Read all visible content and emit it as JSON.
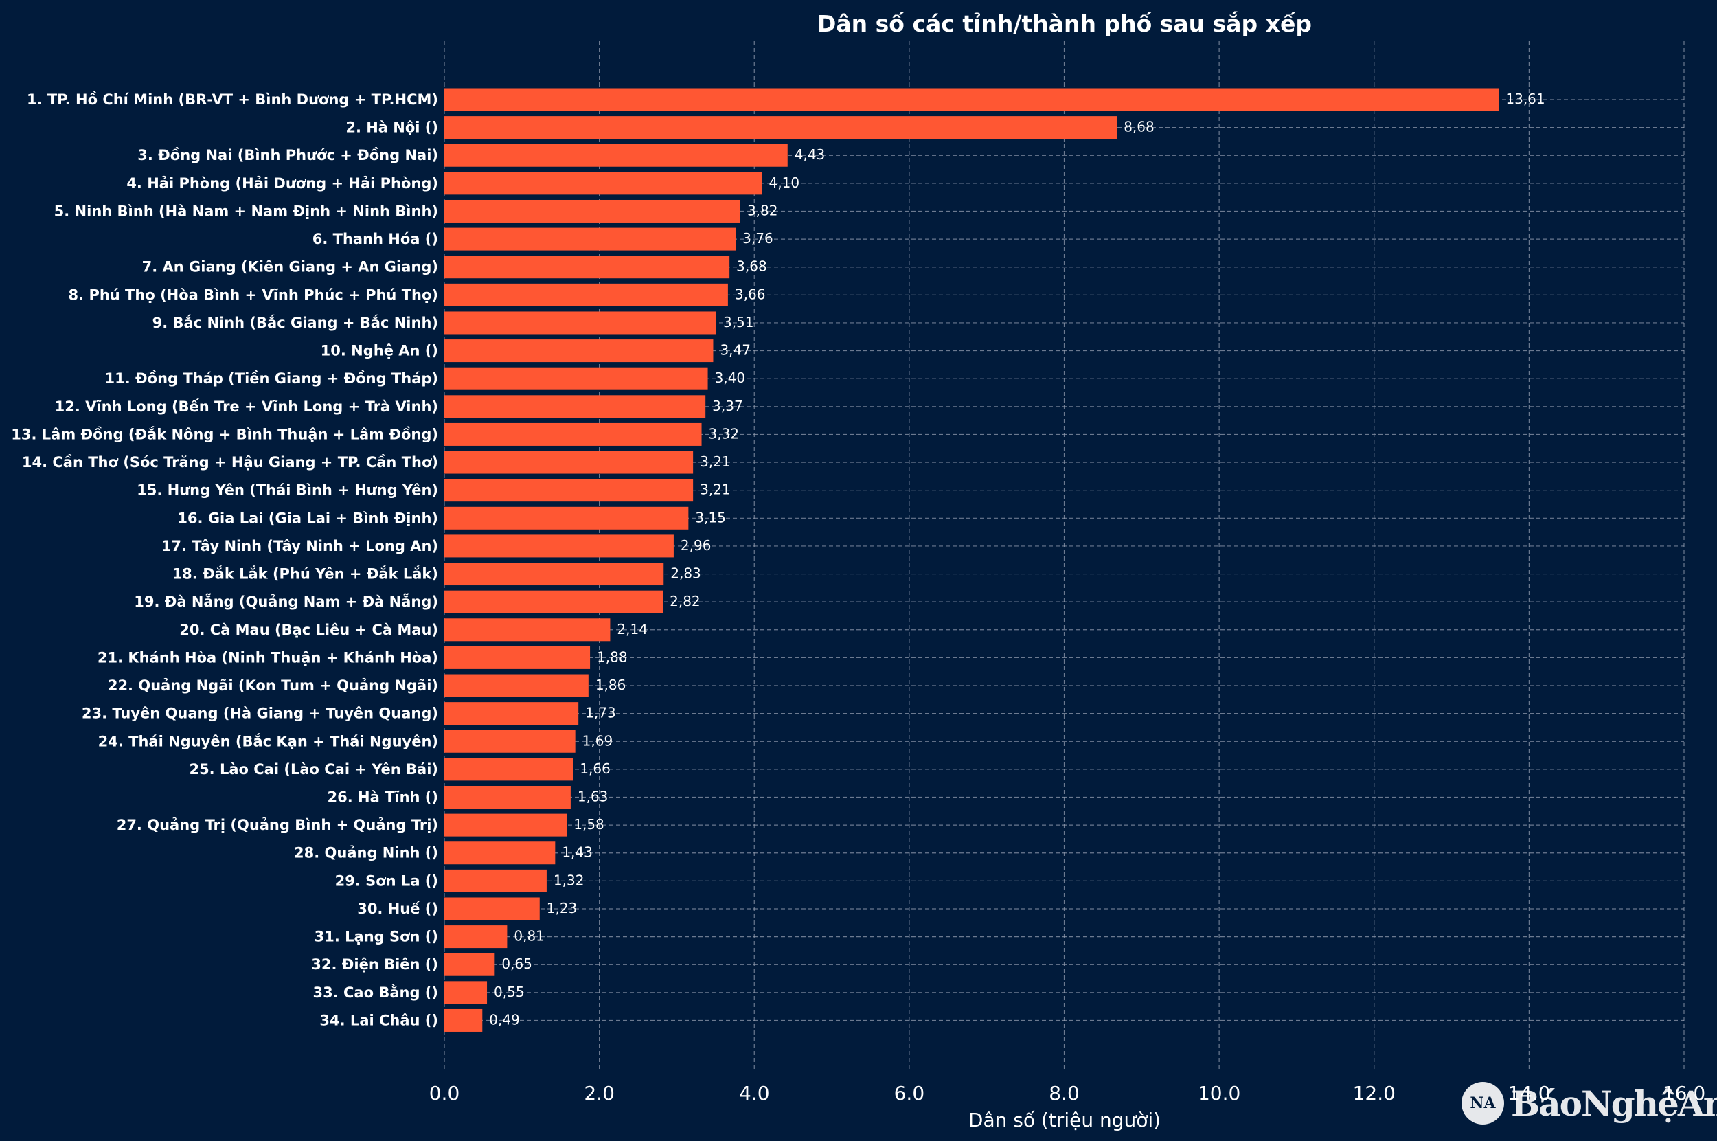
{
  "chart_data": {
    "type": "bar",
    "orientation": "horizontal",
    "title": "Dân số các tỉnh/thành phố sau sắp xếp",
    "xlabel": "Dân số (triệu người)",
    "ylabel": "",
    "xlim": [
      0,
      16
    ],
    "xticks": [
      "0.0",
      "2.0",
      "4.0",
      "6.0",
      "8.0",
      "10.0",
      "12.0",
      "14.0",
      "16.0"
    ],
    "grid": true,
    "categories": [
      "1. TP. Hồ Chí Minh (BR-VT + Bình Dương + TP.HCM)",
      "2. Hà Nội ()",
      "3. Đồng Nai (Bình Phước + Đồng Nai)",
      "4. Hải Phòng (Hải Dương + Hải Phòng)",
      "5. Ninh Bình (Hà Nam + Nam Định + Ninh Bình)",
      "6. Thanh Hóa ()",
      "7. An Giang (Kiên Giang + An Giang)",
      "8. Phú Thọ (Hòa Bình + Vĩnh Phúc + Phú Thọ)",
      "9. Bắc Ninh (Bắc Giang + Bắc Ninh)",
      "10. Nghệ An ()",
      "11. Đồng Tháp (Tiền Giang + Đồng Tháp)",
      "12. Vĩnh Long (Bến Tre + Vĩnh Long + Trà Vinh)",
      "13. Lâm Đồng (Đắk Nông + Bình Thuận + Lâm Đồng)",
      "14. Cần Thơ (Sóc Trăng + Hậu Giang + TP. Cần Thơ)",
      "15. Hưng Yên (Thái Bình + Hưng Yên)",
      "16. Gia Lai (Gia Lai + Bình Định)",
      "17. Tây Ninh (Tây Ninh + Long An)",
      "18. Đắk Lắk (Phú Yên + Đắk Lắk)",
      "19. Đà Nẵng (Quảng Nam + Đà Nẵng)",
      "20. Cà Mau (Bạc Liêu + Cà Mau)",
      "21. Khánh Hòa (Ninh Thuận + Khánh Hòa)",
      "22. Quảng Ngãi (Kon Tum + Quảng Ngãi)",
      "23. Tuyên Quang (Hà Giang + Tuyên Quang)",
      "24. Thái Nguyên (Bắc Kạn + Thái Nguyên)",
      "25. Lào Cai (Lào Cai + Yên Bái)",
      "26. Hà Tĩnh ()",
      "27. Quảng Trị (Quảng Bình + Quảng Trị)",
      "28. Quảng Ninh ()",
      "29. Sơn La ()",
      "30. Huế ()",
      "31. Lạng Sơn ()",
      "32. Điện Biên ()",
      "33. Cao Bằng ()",
      "34. Lai Châu ()"
    ],
    "values": [
      13.61,
      8.68,
      4.43,
      4.1,
      3.82,
      3.76,
      3.68,
      3.66,
      3.51,
      3.47,
      3.4,
      3.37,
      3.32,
      3.21,
      3.21,
      3.15,
      2.96,
      2.83,
      2.82,
      2.14,
      1.88,
      1.86,
      1.73,
      1.69,
      1.66,
      1.63,
      1.58,
      1.43,
      1.32,
      1.23,
      0.81,
      0.65,
      0.55,
      0.49
    ],
    "value_labels": [
      "13,61",
      "8,68",
      "4,43",
      "4,10",
      "3,82",
      "3,76",
      "3,68",
      "3,66",
      "3,51",
      "3,47",
      "3,40",
      "3,37",
      "3,32",
      "3,21",
      "3,21",
      "3,15",
      "2,96",
      "2,83",
      "2,82",
      "2,14",
      "1,88",
      "1,86",
      "1,73",
      "1,69",
      "1,66",
      "1,63",
      "1,58",
      "1,43",
      "1,32",
      "1,23",
      "0,81",
      "0,65",
      "0,55",
      "0,49"
    ]
  },
  "colors": {
    "background": "#011b3b",
    "bar": "#ff5733",
    "text": "#ffffff",
    "grid": "#9aa3b5"
  },
  "watermark": {
    "logo": "Nghệ An",
    "text": "BáoNghệAn"
  }
}
